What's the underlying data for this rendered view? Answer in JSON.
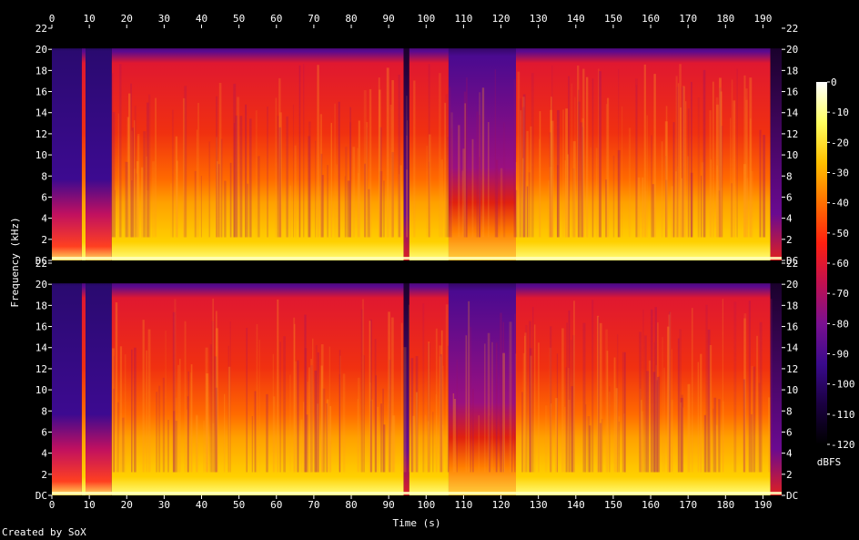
{
  "chart_data": {
    "type": "heatmap",
    "title": "",
    "xlabel": "Time (s)",
    "ylabel": "Frequency (kHz)",
    "x_ticks": [
      "0",
      "10",
      "20",
      "30",
      "40",
      "50",
      "60",
      "70",
      "80",
      "90",
      "100",
      "110",
      "120",
      "130",
      "140",
      "150",
      "160",
      "170",
      "180",
      "190"
    ],
    "x_range": [
      0,
      195
    ],
    "y_ticks": [
      "DC",
      "2",
      "4",
      "6",
      "8",
      "10",
      "12",
      "14",
      "16",
      "18",
      "20",
      "22"
    ],
    "y_range_khz": [
      0,
      22
    ],
    "channels": [
      "channel-1",
      "channel-2"
    ],
    "colorbar": {
      "label": "dBFS",
      "ticks": [
        "0",
        "-10",
        "-20",
        "-30",
        "-40",
        "-50",
        "-60",
        "-70",
        "-80",
        "-90",
        "-100",
        "-110",
        "-120"
      ],
      "range": [
        -120,
        0
      ],
      "stops": [
        "#000000",
        "#1a0040",
        "#3a0a8c",
        "#7a1090",
        "#c01050",
        "#ff2010",
        "#ff7000",
        "#ffc000",
        "#ffff60",
        "#ffffff"
      ]
    },
    "content_segments_s": [
      {
        "start": 0,
        "end": 8,
        "level": "quiet"
      },
      {
        "start": 8,
        "end": 9,
        "level": "loud"
      },
      {
        "start": 9,
        "end": 16,
        "level": "quiet"
      },
      {
        "start": 16,
        "end": 94,
        "level": "loud"
      },
      {
        "start": 94,
        "end": 95.5,
        "level": "dip"
      },
      {
        "start": 95.5,
        "end": 106,
        "level": "loud"
      },
      {
        "start": 106,
        "end": 124,
        "level": "medium"
      },
      {
        "start": 124,
        "end": 192,
        "level": "loud"
      },
      {
        "start": 192,
        "end": 195,
        "level": "fade"
      }
    ]
  },
  "footer": {
    "credit": "Created by SoX"
  }
}
